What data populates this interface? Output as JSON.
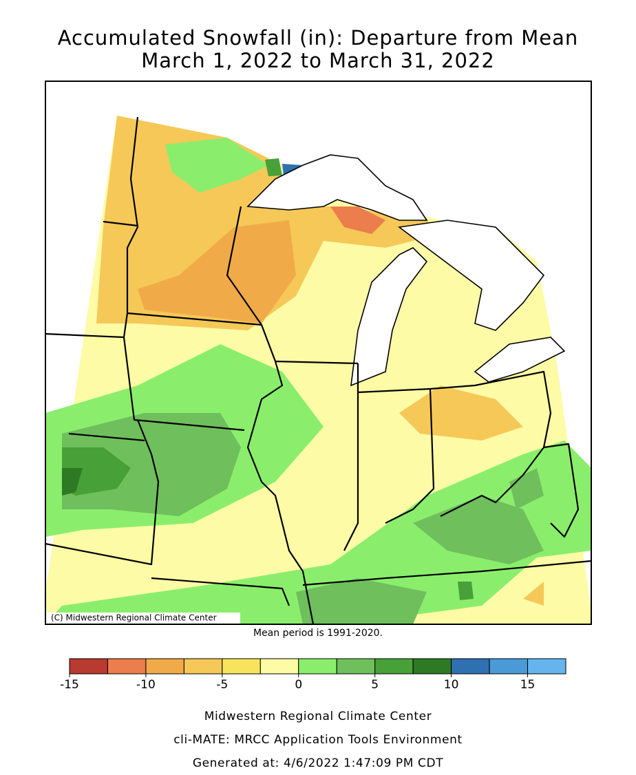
{
  "title": [
    "Accumulated Snowfall (in): Departure from Mean",
    "March 1, 2022 to March 31, 2022"
  ],
  "map": {
    "credit": "(C) Midwestern Regional Climate Center",
    "note": "Mean period is 1991-2020."
  },
  "legend": {
    "bins": [
      -15,
      -12.5,
      -10,
      -7.5,
      -5,
      -2.5,
      0,
      2.5,
      5,
      7.5,
      10,
      12.5,
      15,
      17.5
    ],
    "colors": [
      "#b83a30",
      "#ec7d4c",
      "#f0ab48",
      "#f5c858",
      "#f8e45c",
      "#fdfba6",
      "#8aee6c",
      "#6fbf5c",
      "#47a038",
      "#2e7a24",
      "#2f70b0",
      "#4a9ad8",
      "#66b4ee"
    ],
    "ticks": [
      -15,
      -10,
      -5,
      0,
      5,
      10,
      15
    ]
  },
  "footer": [
    "Midwestern Regional Climate Center",
    "cli-MATE: MRCC Application Tools Environment",
    "Generated at: 4/6/2022 1:47:09 PM CDT"
  ]
}
